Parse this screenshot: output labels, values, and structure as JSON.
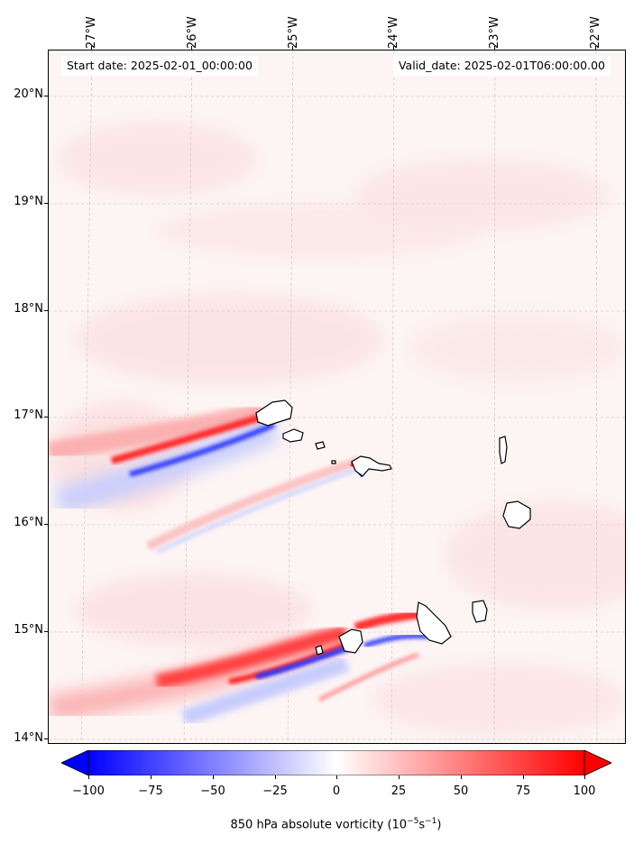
{
  "header": {
    "start_date": "Start date: 2025-02-01_00:00:00",
    "valid_date": "Valid_date: 2025-02-01T06:00:00.00"
  },
  "axes": {
    "lon_labels": [
      "27°W",
      "26°W",
      "25°W",
      "24°W",
      "23°W",
      "22°W"
    ],
    "lat_labels": [
      "20°N",
      "19°N",
      "18°N",
      "17°N",
      "16°N",
      "15°N",
      "14°N"
    ]
  },
  "colorbar": {
    "title": "850 hPa absolute vorticity (10",
    "title_exp1": "−5",
    "title_mid": "s",
    "title_exp2": "−1",
    "title_end": ")",
    "tick_labels": [
      "−100",
      "−75",
      "−50",
      "−25",
      "0",
      "25",
      "50",
      "75",
      "100"
    ],
    "colors": {
      "neg": "#0000ff",
      "mid": "#ffffff",
      "pos": "#ff0000"
    }
  }
}
